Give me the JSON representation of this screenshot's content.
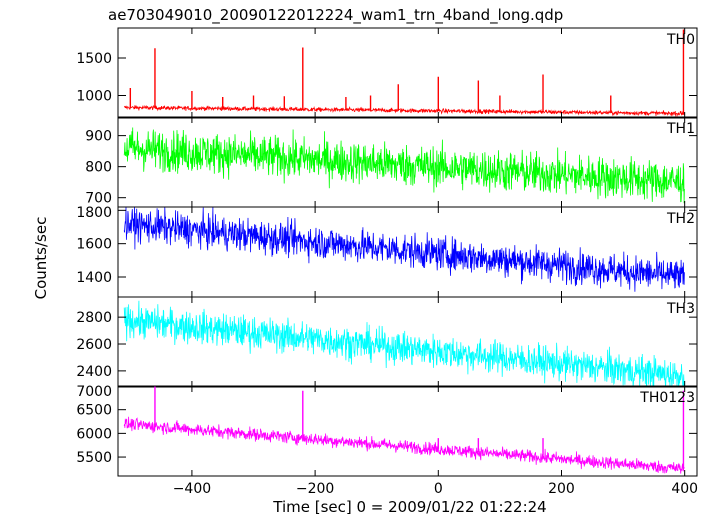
{
  "title": "ae703049010_20090122012224_wam1_trn_4band_long.qdp",
  "xlabel": "Time [sec] 0 = 2009/01/22 01:22:24",
  "ylabel": "Counts/sec",
  "chart_data": {
    "type": "line",
    "title": "ae703049010_20090122012224_wam1_trn_4band_long.qdp",
    "xlabel": "Time [sec] 0 = 2009/01/22 01:22:24",
    "ylabel": "Counts/sec",
    "xlim": [
      -520,
      420
    ],
    "xticks": [
      -400,
      -200,
      0,
      200,
      400
    ],
    "xtick_labels": [
      "−400",
      "−200",
      "0",
      "200",
      "400"
    ],
    "grid": false,
    "panels": [
      {
        "label": "TH0",
        "color": "#ff0000",
        "ylim": [
          700,
          1900
        ],
        "yticks": [
          1000,
          1500
        ],
        "ytick_labels": [
          "1000",
          "1500"
        ],
        "trend": [
          [
            -510,
            840
          ],
          [
            400,
            760
          ]
        ],
        "noise": 25,
        "spikes": [
          [
            -500,
            1100
          ],
          [
            -460,
            1630
          ],
          [
            -400,
            1060
          ],
          [
            -350,
            980
          ],
          [
            -300,
            1000
          ],
          [
            -250,
            990
          ],
          [
            -220,
            1640
          ],
          [
            -150,
            980
          ],
          [
            -110,
            1000
          ],
          [
            -65,
            1150
          ],
          [
            0,
            1250
          ],
          [
            65,
            1200
          ],
          [
            100,
            1000
          ],
          [
            170,
            1280
          ],
          [
            280,
            1000
          ],
          [
            398,
            1880
          ]
        ]
      },
      {
        "label": "TH1",
        "color": "#00ff00",
        "ylim": [
          670,
          960
        ],
        "yticks": [
          700,
          800,
          900
        ],
        "ytick_labels": [
          "700",
          "800",
          "900"
        ],
        "trend": [
          [
            -510,
            860
          ],
          [
            400,
            750
          ]
        ],
        "noise": 60,
        "spikes": []
      },
      {
        "label": "TH2",
        "color": "#0000ff",
        "ylim": [
          1280,
          1820
        ],
        "yticks": [
          1400,
          1600,
          1800
        ],
        "ytick_labels": [
          "1400",
          "1600",
          "1800"
        ],
        "trend": [
          [
            -510,
            1720
          ],
          [
            400,
            1400
          ]
        ],
        "noise": 90,
        "spikes": []
      },
      {
        "label": "TH3",
        "color": "#00ffff",
        "ylim": [
          2280,
          2950
        ],
        "yticks": [
          2400,
          2600,
          2800
        ],
        "ytick_labels": [
          "2400",
          "2600",
          "2800"
        ],
        "trend": [
          [
            -510,
            2780
          ],
          [
            400,
            2360
          ]
        ],
        "noise": 110,
        "spikes": []
      },
      {
        "label": "TH0123",
        "color": "#ff00ff",
        "ylim": [
          5100,
          7000
        ],
        "yticks": [
          5500,
          6000,
          6500,
          7000
        ],
        "ytick_labels": [
          "5500",
          "6000",
          "6500",
          "7000"
        ],
        "trend": [
          [
            -510,
            6200
          ],
          [
            400,
            5250
          ]
        ],
        "noise": 120,
        "spikes": [
          [
            -460,
            7000
          ],
          [
            -220,
            6900
          ],
          [
            0,
            5900
          ],
          [
            65,
            5900
          ],
          [
            170,
            5900
          ],
          [
            398,
            6900
          ]
        ]
      }
    ]
  }
}
